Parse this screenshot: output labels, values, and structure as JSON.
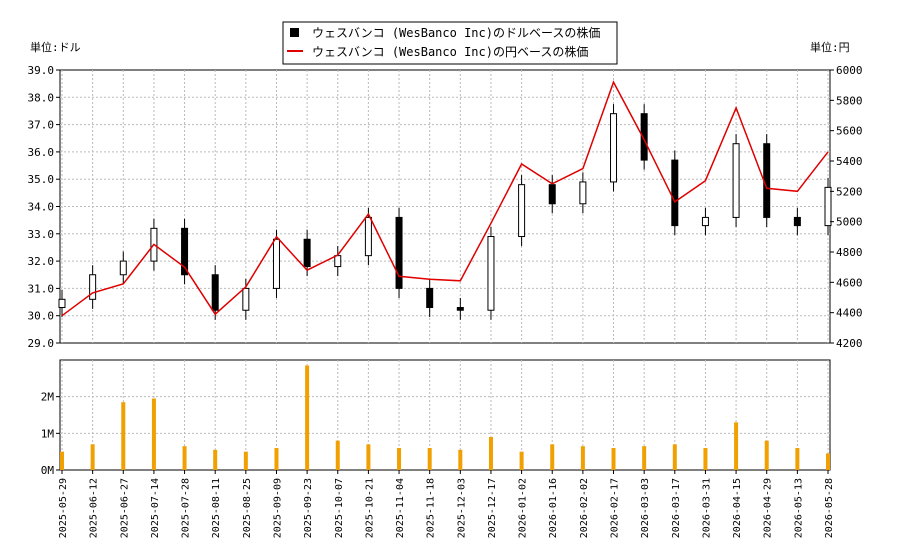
{
  "chart_data": [
    {
      "type": "candlestick+line",
      "legend": {
        "placement": "top-center",
        "entries": [
          {
            "name": "ウェスバンコ (WesBanco Inc)のドルベースの株価",
            "color": "#000000",
            "marker": "square"
          },
          {
            "name": "ウェスバンコ (WesBanco Inc)の円ベースの株価",
            "color": "#e00000",
            "marker": "line"
          }
        ]
      },
      "y_left": {
        "label": "単位:ドル",
        "range": [
          29.0,
          39.0
        ],
        "ticks": [
          "29.0",
          "30.0",
          "31.0",
          "32.0",
          "33.0",
          "34.0",
          "35.0",
          "36.0",
          "37.0",
          "38.0",
          "39.0"
        ]
      },
      "y_right": {
        "label": "単位:円",
        "range": [
          4200,
          6000
        ],
        "ticks": [
          "4200",
          "4400",
          "4600",
          "4800",
          "5000",
          "5200",
          "5400",
          "5600",
          "5800",
          "6000"
        ]
      },
      "grid": true,
      "x": [
        "2025-05-29",
        "2025-06-12",
        "2025-06-27",
        "2025-07-14",
        "2025-07-28",
        "2025-08-11",
        "2025-08-25",
        "2025-09-09",
        "2025-09-23",
        "2025-10-07",
        "2025-10-21",
        "2025-11-04",
        "2025-11-18",
        "2025-12-03",
        "2025-12-17",
        "2026-01-02",
        "2026-01-16",
        "2026-02-02",
        "2026-02-17",
        "2026-03-03",
        "2026-03-17",
        "2026-03-31",
        "2026-04-15",
        "2026-04-29",
        "2026-05-13",
        "2026-05-28"
      ],
      "usd_close": [
        30.6,
        31.5,
        32.0,
        33.2,
        31.5,
        30.2,
        31.0,
        32.8,
        31.8,
        32.2,
        33.6,
        31.0,
        30.3,
        30.2,
        32.9,
        34.8,
        34.1,
        34.9,
        37.4,
        35.7,
        33.3,
        33.6,
        36.3,
        33.6,
        33.3,
        34.7
      ],
      "jpy_close": [
        4380,
        4530,
        4590,
        4850,
        4700,
        4390,
        4570,
        4900,
        4680,
        4780,
        5050,
        4640,
        4620,
        4610,
        4990,
        5380,
        5250,
        5350,
        5920,
        5540,
        5130,
        5270,
        5750,
        5220,
        5200,
        5460
      ]
    },
    {
      "type": "bar",
      "title": "",
      "y_range": [
        0,
        3.0
      ],
      "y_unit": "M",
      "y_ticks": [
        "0M",
        "1M",
        "2M"
      ],
      "x": [
        "2025-05-29",
        "2025-06-12",
        "2025-06-27",
        "2025-07-14",
        "2025-07-28",
        "2025-08-11",
        "2025-08-25",
        "2025-09-09",
        "2025-09-23",
        "2025-10-07",
        "2025-10-21",
        "2025-11-04",
        "2025-11-18",
        "2025-12-03",
        "2025-12-17",
        "2026-01-02",
        "2026-01-16",
        "2026-02-02",
        "2026-02-17",
        "2026-03-03",
        "2026-03-17",
        "2026-03-31",
        "2026-04-15",
        "2026-04-29",
        "2026-05-13",
        "2026-05-28"
      ],
      "volume_m": [
        0.5,
        0.7,
        1.85,
        1.95,
        0.65,
        0.55,
        0.5,
        0.6,
        2.85,
        0.8,
        0.7,
        0.6,
        0.6,
        0.55,
        0.9,
        0.5,
        0.7,
        0.65,
        0.6,
        0.65,
        0.7,
        0.6,
        1.3,
        0.8,
        0.6,
        0.45
      ],
      "color": "#f0a000"
    }
  ]
}
